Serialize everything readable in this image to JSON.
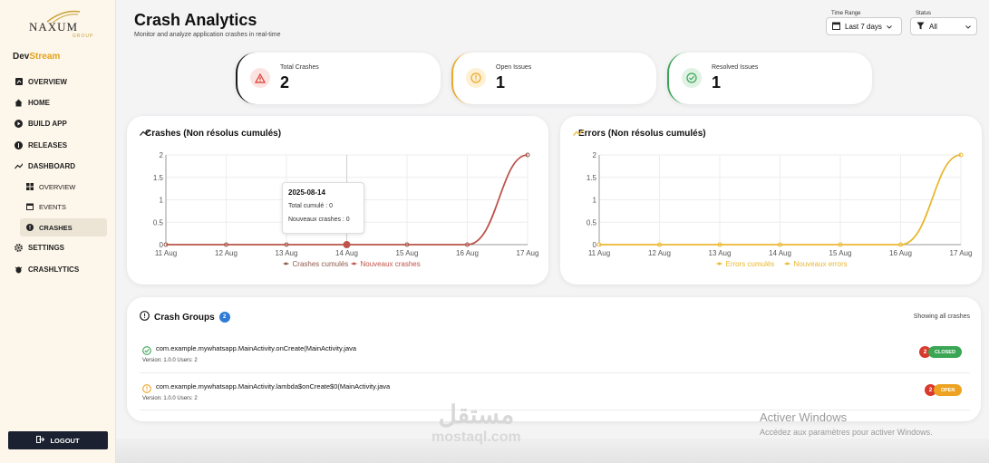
{
  "sidebar": {
    "logo_text": "NAXUM",
    "logo_sub": "GROUP",
    "product_a": "Dev",
    "product_b": "Stream",
    "items": [
      {
        "label": "OVERVIEW"
      },
      {
        "label": "HOME"
      },
      {
        "label": "BUILD APP"
      },
      {
        "label": "RELEASES"
      },
      {
        "label": "DASHBOARD"
      },
      {
        "label": "OVERVIEW"
      },
      {
        "label": "EVENTS"
      },
      {
        "label": "CRASHES"
      },
      {
        "label": "SETTINGS"
      },
      {
        "label": "CRASHLYTICS"
      }
    ],
    "logout": "LOGOUT"
  },
  "header": {
    "title": "Crash Analytics",
    "subtitle": "Monitor and analyze application crashes in real-time",
    "time_range_label": "Time Range",
    "time_range_value": "Last 7 days",
    "status_label": "Status",
    "status_value": "All"
  },
  "stats": [
    {
      "label": "Total Crashes",
      "value": "2",
      "color": "#d93a2e"
    },
    {
      "label": "Open Issues",
      "value": "1",
      "color": "#e9a825"
    },
    {
      "label": "Resolved Issues",
      "value": "1",
      "color": "#3aa655"
    }
  ],
  "charts": {
    "crashes_title": "Crashes (Non résolus cumulés)",
    "errors_title": "Errors (Non résolus cumulés)",
    "tooltip": {
      "date": "2025-08-14",
      "line1": "Total cumulé : 0",
      "line2": "Nouveaux crashes : 0"
    }
  },
  "chart_data": [
    {
      "type": "line",
      "title": "Crashes (Non résolus cumulés)",
      "categories": [
        "11 Aug",
        "12 Aug",
        "13 Aug",
        "14 Aug",
        "15 Aug",
        "16 Aug",
        "17 Aug"
      ],
      "y_ticks": [
        "0",
        "0.5",
        "1",
        "1.5",
        "2"
      ],
      "ylim": [
        0,
        2
      ],
      "series": [
        {
          "name": "Crashes cumulés",
          "values": [
            0,
            0,
            0,
            0,
            0,
            0,
            2
          ],
          "color": "#8b5a4a"
        },
        {
          "name": "Nouveaux crashes",
          "values": [
            0,
            0,
            0,
            0,
            0,
            0,
            2
          ],
          "color": "#c0534a"
        }
      ],
      "legend": "bottom"
    },
    {
      "type": "line",
      "title": "Errors (Non résolus cumulés)",
      "categories": [
        "11 Aug",
        "12 Aug",
        "13 Aug",
        "14 Aug",
        "15 Aug",
        "16 Aug",
        "17 Aug"
      ],
      "y_ticks": [
        "0",
        "0.5",
        "1",
        "1.5",
        "2"
      ],
      "ylim": [
        0,
        2
      ],
      "series": [
        {
          "name": "Errors cumulés",
          "values": [
            0,
            0,
            0,
            0,
            0,
            0,
            2
          ],
          "color": "#e9b730"
        },
        {
          "name": "Nouveaux errors",
          "values": [
            0,
            0,
            0,
            0,
            0,
            0,
            2
          ],
          "color": "#e9b730"
        }
      ],
      "legend": "bottom"
    }
  ],
  "groups": {
    "title": "Crash Groups",
    "count": "2",
    "showing": "Showing all crashes",
    "rows": [
      {
        "name": "com.example.mywhatsapp.MainActivity.onCreate(MainActivity.java",
        "meta": "Version: 1.0.0    Users: 2",
        "count": "2",
        "status": "CLOSED",
        "status_color": "#3aa655"
      },
      {
        "name": "com.example.mywhatsapp.MainActivity.lambda$onCreate$0(MainActivity.java",
        "meta": "Version: 1.0.0    Users: 2",
        "count": "2",
        "status": "OPEN",
        "status_color": "#eda321"
      }
    ]
  },
  "overlay": {
    "activate_title": "Activer Windows",
    "activate_sub": "Accédez aux paramètres pour activer Windows.",
    "mostaql_ar": "مستقل",
    "mostaql_en": "mostaql.com"
  }
}
